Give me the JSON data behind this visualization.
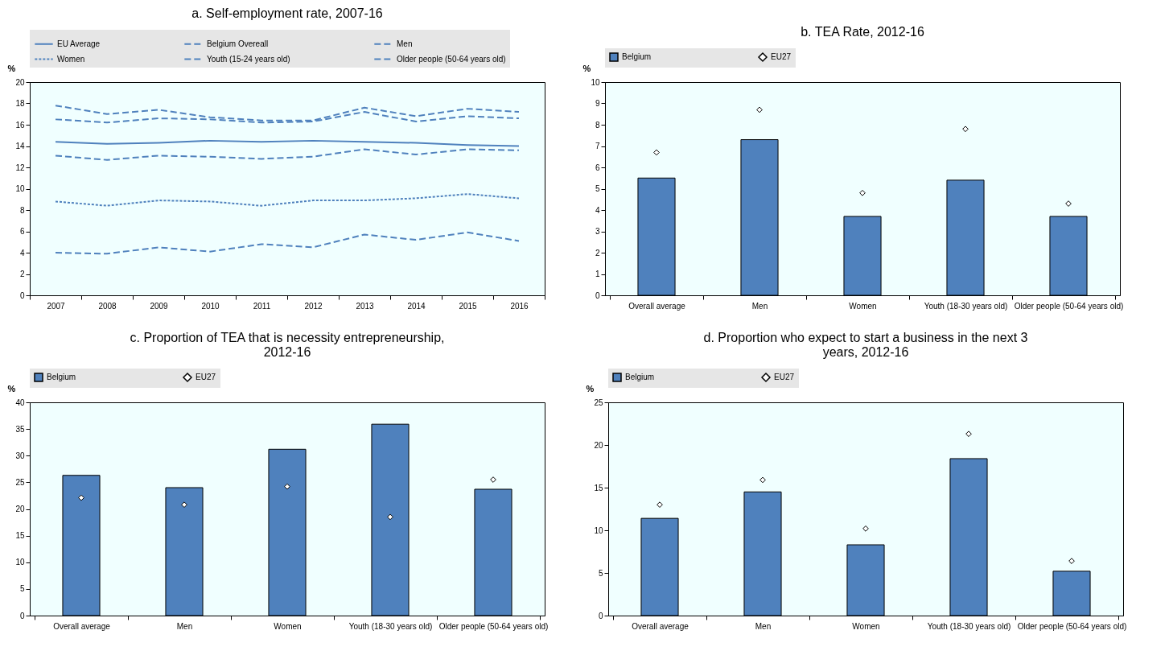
{
  "chart_data": [
    {
      "type": "line",
      "title": "a. Self-employment rate, 2007-16",
      "ylabel": "%",
      "categories": [
        "2007",
        "2008",
        "2009",
        "2010",
        "2011",
        "2012",
        "2013",
        "2014",
        "2015",
        "2016"
      ],
      "ylim": [
        0,
        20
      ],
      "yticks": [
        0,
        2,
        4,
        6,
        8,
        10,
        12,
        14,
        16,
        18,
        20
      ],
      "grid": false,
      "legend": "top",
      "series": [
        {
          "name": "EU Average",
          "color": "#4f81bd",
          "line_style": "solid",
          "values": [
            14.4,
            14.2,
            14.3,
            14.5,
            14.4,
            14.5,
            14.4,
            14.3,
            14.1,
            14.0
          ]
        },
        {
          "name": "Belgium Overeall",
          "color": "#4f81bd",
          "line_style": "dashed",
          "values": [
            13.1,
            12.7,
            13.1,
            13.0,
            12.8,
            13.0,
            13.7,
            13.2,
            13.7,
            13.6
          ]
        },
        {
          "name": "Men",
          "color": "#4f81bd",
          "line_style": "dashed",
          "values": [
            16.5,
            16.2,
            16.6,
            16.5,
            16.2,
            16.3,
            17.2,
            16.3,
            16.8,
            16.6
          ]
        },
        {
          "name": "Women",
          "color": "#4f81bd",
          "line_style": "dotted",
          "values": [
            8.8,
            8.4,
            8.9,
            8.8,
            8.4,
            8.9,
            8.9,
            9.1,
            9.5,
            9.1
          ]
        },
        {
          "name": "Youth (15-24 years old)",
          "color": "#4f81bd",
          "line_style": "dashed",
          "values": [
            4.0,
            3.9,
            4.5,
            4.1,
            4.8,
            4.5,
            5.7,
            5.2,
            5.9,
            5.1
          ]
        },
        {
          "name": "Older people (50-64 years old)",
          "color": "#4f81bd",
          "line_style": "dashed",
          "values": [
            17.8,
            17.0,
            17.4,
            16.7,
            16.4,
            16.4,
            17.6,
            16.8,
            17.5,
            17.2
          ]
        }
      ]
    },
    {
      "type": "bar",
      "title": "b. TEA Rate, 2012-16",
      "ylabel": "%",
      "categories": [
        "Overall average",
        "Men",
        "Women",
        "Youth (18-30 years old)",
        "Older people (50-64 years old)"
      ],
      "ylim": [
        0,
        10
      ],
      "yticks": [
        0,
        1,
        2,
        3,
        4,
        5,
        6,
        7,
        8,
        9,
        10
      ],
      "grid": false,
      "legend": "top",
      "series": [
        {
          "name": "Belgium",
          "color": "#4f81bd",
          "values": [
            5.5,
            7.3,
            3.7,
            5.4,
            3.7
          ]
        },
        {
          "name": "EU27",
          "type": "scatter",
          "marker": "diamond",
          "color": "#ffffff",
          "values": [
            6.7,
            8.7,
            4.8,
            7.8,
            4.3
          ]
        }
      ]
    },
    {
      "type": "bar",
      "title": "c. Proportion of TEA that is necessity entrepreneurship, 2012-16",
      "ylabel": "%",
      "categories": [
        "Overall average",
        "Men",
        "Women",
        "Youth (18-30 years old)",
        "Older people (50-64 years old)"
      ],
      "ylim": [
        0,
        40
      ],
      "yticks": [
        0,
        5,
        10,
        15,
        20,
        25,
        30,
        35,
        40
      ],
      "grid": false,
      "legend": "top",
      "series": [
        {
          "name": "Belgium",
          "color": "#4f81bd",
          "values": [
            26.3,
            24.0,
            31.2,
            35.9,
            23.7
          ]
        },
        {
          "name": "EU27",
          "type": "scatter",
          "marker": "diamond",
          "color": "#ffffff",
          "values": [
            22.1,
            20.8,
            24.2,
            18.5,
            25.5
          ]
        }
      ]
    },
    {
      "type": "bar",
      "title": "d. Proportion who expect to start a business in the next 3 years, 2012-16",
      "ylabel": "%",
      "categories": [
        "Overall average",
        "Men",
        "Women",
        "Youth (18-30 years old)",
        "Older people (50-64 years old)"
      ],
      "ylim": [
        0,
        25
      ],
      "yticks": [
        0,
        5,
        10,
        15,
        20,
        25
      ],
      "grid": false,
      "legend": "top",
      "series": [
        {
          "name": "Belgium",
          "color": "#4f81bd",
          "values": [
            11.4,
            14.5,
            8.3,
            18.4,
            5.2
          ]
        },
        {
          "name": "EU27",
          "type": "scatter",
          "marker": "diamond",
          "color": "#ffffff",
          "values": [
            13.0,
            15.9,
            10.2,
            21.3,
            6.4
          ]
        }
      ]
    }
  ]
}
